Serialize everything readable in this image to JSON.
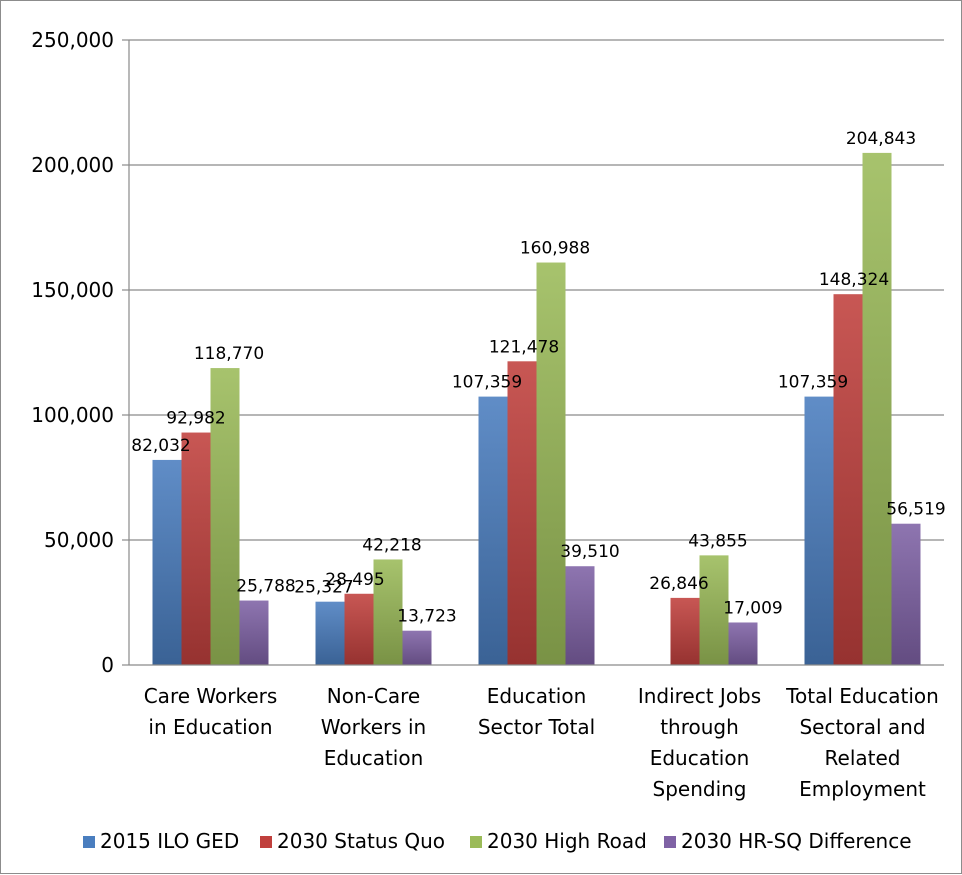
{
  "chart_data": {
    "type": "bar",
    "title": "",
    "xlabel": "",
    "ylabel": "",
    "ylim": [
      0,
      250000
    ],
    "yticks": [
      0,
      50000,
      100000,
      150000,
      200000,
      250000
    ],
    "ytick_labels": [
      "0",
      "50,000",
      "100,000",
      "150,000",
      "200,000",
      "250,000"
    ],
    "grid": true,
    "legend_position": "bottom",
    "categories": [
      [
        "Care Workers",
        "in Education"
      ],
      [
        "Non-Care",
        "Workers in",
        "Education"
      ],
      [
        "Education",
        "Sector Total"
      ],
      [
        "Indirect Jobs",
        "through",
        "Education",
        "Spending"
      ],
      [
        "Total Education",
        "Sectoral and",
        "Related",
        "Employment"
      ]
    ],
    "series": [
      {
        "name": "2015 ILO GED",
        "color": "#4a7ebf",
        "values": [
          82032,
          25327,
          107359,
          null,
          107359
        ],
        "labels": [
          "82,032",
          "25,327",
          "107,359",
          null,
          "107,359"
        ]
      },
      {
        "name": "2030 Status Quo",
        "color": "#c0403d",
        "values": [
          92982,
          28495,
          121478,
          26846,
          148324
        ],
        "labels": [
          "92,982",
          "28,495",
          "121,478",
          "26,846",
          "148,324"
        ]
      },
      {
        "name": "2030 High Road",
        "color": "#9bbb59",
        "values": [
          118770,
          42218,
          160988,
          43855,
          204843
        ],
        "labels": [
          "118,770",
          "42,218",
          "160,988",
          "43,855",
          "204,843"
        ]
      },
      {
        "name": "2030 HR-SQ Difference",
        "color": "#7f62a5",
        "values": [
          25788,
          13723,
          39510,
          17009,
          56519
        ],
        "labels": [
          "25,788",
          "13,723",
          "39,510",
          "17,009",
          "56,519"
        ]
      }
    ]
  }
}
